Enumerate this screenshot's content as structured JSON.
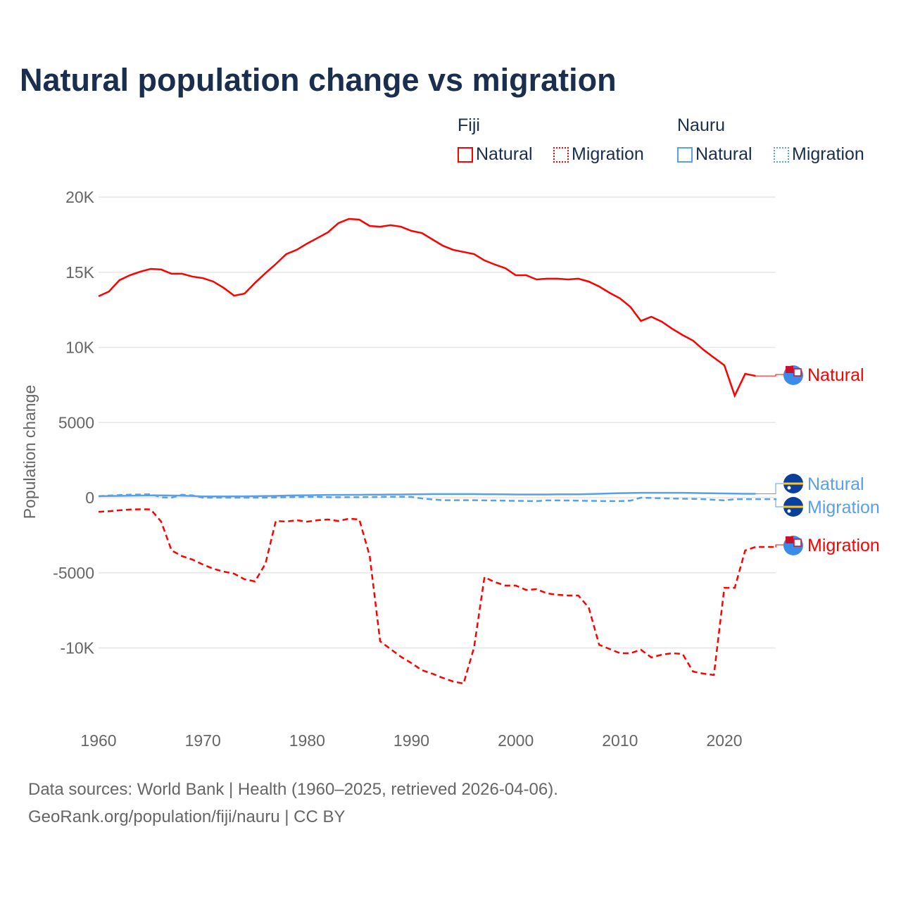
{
  "title": "Natural population change vs migration",
  "legend": {
    "groups": [
      {
        "name": "Fiji",
        "color": "#ff0000"
      },
      {
        "name": "Nauru",
        "color": "#5aa0e6"
      }
    ],
    "natural_label": "Natural",
    "migration_label": "Migration"
  },
  "source_line1": "Data sources: World Bank | Health (1960–2025, retrieved 2026-04-06).",
  "source_line2": "GeoRank.org/population/fiji/nauru | CC BY",
  "chart_data": {
    "type": "line",
    "title": "Natural population change vs migration",
    "xlabel": "",
    "ylabel": "Population change",
    "xlim": [
      1960,
      2025
    ],
    "ylim": [
      -15000,
      20000
    ],
    "x_ticks": [
      1960,
      1970,
      1980,
      1990,
      2000,
      2010,
      2020
    ],
    "x_tick_labels": [
      "1960",
      "1970",
      "1980",
      "1990",
      "2000",
      "2010",
      "2020"
    ],
    "y_ticks": [
      20000,
      15000,
      10000,
      5000,
      0,
      -5000,
      -10000
    ],
    "y_tick_labels": [
      "20K",
      "15K",
      "10K",
      "5000",
      "0",
      "-5000",
      "-10K"
    ],
    "start_year": 1960,
    "series": [
      {
        "name": "Fiji Natural",
        "country": "Fiji",
        "kind": "Natural",
        "color": "#ff0000",
        "dash": false,
        "end_label": "Natural",
        "values": [
          13400,
          13720,
          14470,
          14800,
          15040,
          15220,
          15180,
          14900,
          14900,
          14710,
          14610,
          14380,
          13960,
          13440,
          13580,
          14290,
          14940,
          15550,
          16210,
          16490,
          16910,
          17280,
          17660,
          18270,
          18550,
          18500,
          18080,
          18030,
          18130,
          18030,
          17750,
          17610,
          17190,
          16770,
          16490,
          16350,
          16210,
          15790,
          15510,
          15270,
          14800,
          14800,
          14520,
          14570,
          14570,
          14520,
          14570,
          14380,
          14050,
          13630,
          13260,
          12690,
          11760,
          12040,
          11710,
          11240,
          10820,
          10450,
          9840,
          9320,
          8810,
          6790,
          8240,
          8100
        ]
      },
      {
        "name": "Fiji Migration",
        "country": "Fiji",
        "kind": "Migration",
        "color": "#ff0000",
        "dash": true,
        "end_label": "Migration",
        "values": [
          -940,
          -900,
          -840,
          -790,
          -770,
          -780,
          -1590,
          -3510,
          -3890,
          -4120,
          -4450,
          -4730,
          -4920,
          -5060,
          -5430,
          -5570,
          -4400,
          -1550,
          -1590,
          -1500,
          -1600,
          -1500,
          -1450,
          -1550,
          -1400,
          -1450,
          -3890,
          -9560,
          -10070,
          -10590,
          -11010,
          -11480,
          -11710,
          -11990,
          -12230,
          -12370,
          -9980,
          -5290,
          -5620,
          -5850,
          -5850,
          -6140,
          -6090,
          -6370,
          -6460,
          -6510,
          -6510,
          -7310,
          -9790,
          -10070,
          -10350,
          -10350,
          -10120,
          -10630,
          -10450,
          -10350,
          -10400,
          -11570,
          -11710,
          -11800,
          -6000,
          -6000,
          -3510,
          -3280,
          -3280,
          -3280
        ]
      },
      {
        "name": "Nauru Natural",
        "country": "Nauru",
        "kind": "Natural",
        "color": "#5aa0e6",
        "dash": false,
        "end_label": "Natural",
        "values": [
          100,
          110,
          120,
          130,
          140,
          150,
          150,
          140,
          130,
          110,
          80,
          80,
          80,
          90,
          90,
          100,
          110,
          120,
          140,
          150,
          160,
          170,
          180,
          180,
          190,
          190,
          200,
          200,
          210,
          210,
          220,
          230,
          240,
          240,
          240,
          240,
          240,
          230,
          230,
          220,
          210,
          210,
          210,
          210,
          220,
          220,
          220,
          240,
          260,
          280,
          300,
          310,
          320,
          320,
          320,
          320,
          320,
          310,
          300,
          290,
          280,
          270,
          260,
          260
        ]
      },
      {
        "name": "Nauru Migration",
        "country": "Nauru",
        "kind": "Migration",
        "color": "#5aa0e6",
        "dash": true,
        "end_label": "Migration",
        "values": [
          100,
          140,
          170,
          200,
          210,
          230,
          20,
          0,
          200,
          150,
          0,
          0,
          0,
          0,
          0,
          0,
          0,
          20,
          30,
          40,
          50,
          50,
          30,
          30,
          30,
          30,
          40,
          50,
          60,
          60,
          50,
          -50,
          -120,
          -170,
          -170,
          -170,
          -170,
          -180,
          -190,
          -200,
          -210,
          -220,
          -230,
          -180,
          -180,
          -190,
          -200,
          -210,
          -220,
          -230,
          -230,
          -200,
          0,
          -20,
          -40,
          -60,
          -70,
          -80,
          -100,
          -140,
          -180,
          -100,
          -100,
          -100,
          -100,
          -100
        ]
      }
    ]
  }
}
